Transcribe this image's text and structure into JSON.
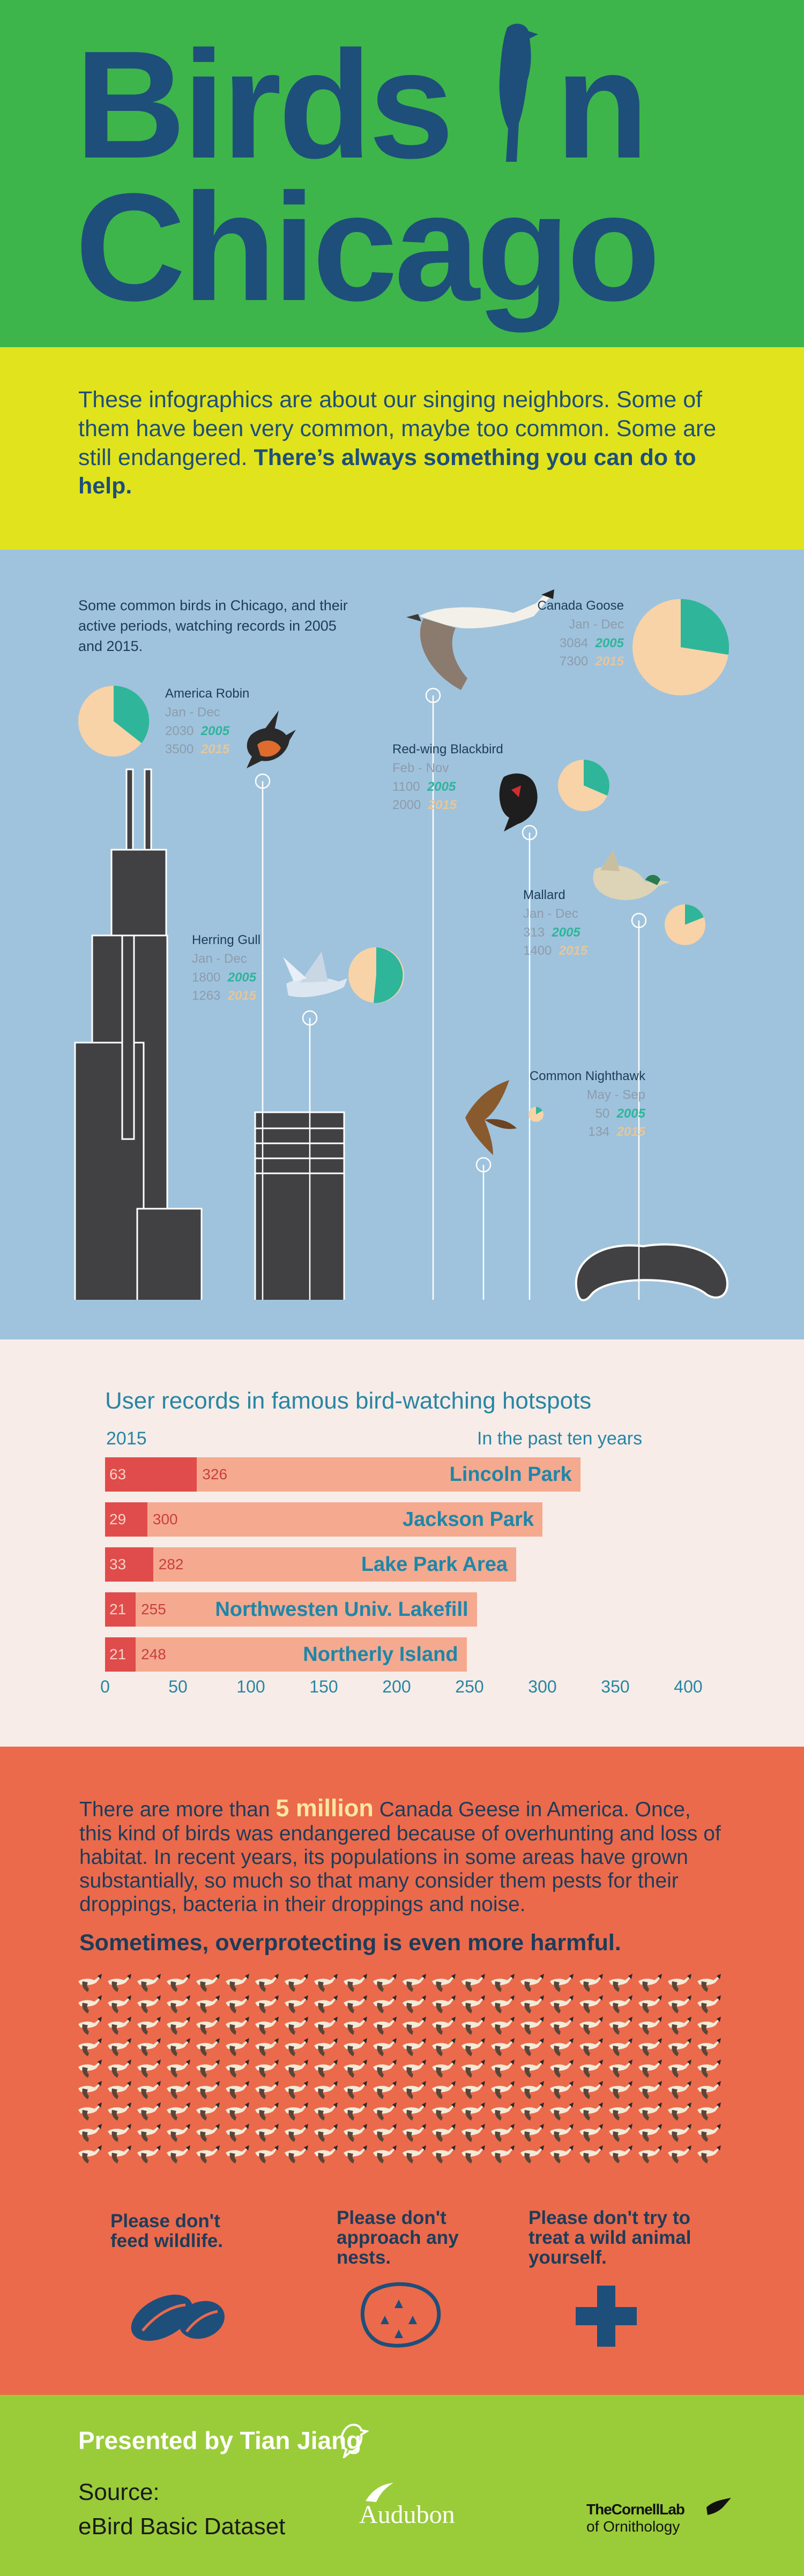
{
  "title": {
    "line1": "Birds",
    "line1b": "n",
    "line2": "Chicago"
  },
  "intro": {
    "text": "These infographics are about our singing neighbors. Some of them have been very common, maybe too common. Some are still endangered.",
    "emphasis": "There’s always something you can do to help."
  },
  "birds_section": {
    "description": "Some common birds in Chicago, and their active periods, watching records in 2005 and 2015.",
    "year_a": "2005",
    "year_b": "2015",
    "birds": [
      {
        "name": "America Robin",
        "period": "Jan - Dec",
        "v2005": "2030",
        "v2015": "3500"
      },
      {
        "name": "Canada Goose",
        "period": "Jan - Dec",
        "v2005": "3084",
        "v2015": "7300"
      },
      {
        "name": "Red-wing Blackbird",
        "period": "Feb - Nov",
        "v2005": "1100",
        "v2015": "2000"
      },
      {
        "name": "Herring Gull",
        "period": "Jan - Dec",
        "v2005": "1800",
        "v2015": "1263"
      },
      {
        "name": "Mallard",
        "period": "Jan - Dec",
        "v2005": "313",
        "v2015": "1400"
      },
      {
        "name": "Common Nighthawk",
        "period": "May - Sep",
        "v2005": "50",
        "v2015": "134"
      }
    ],
    "colors": {
      "y2005": "#2fb59a",
      "y2015": "#f9d3a8"
    }
  },
  "chart_data": {
    "type": "bar",
    "title": "User records in famous bird-watching hotspots",
    "legend_left": "2015",
    "legend_right": "In the past ten years",
    "categories": [
      "Lincoln Park",
      "Jackson Park",
      "Lake Park Area",
      "Northwesten Univ. Lakefill",
      "Northerly Island"
    ],
    "series": [
      {
        "name": "2015",
        "values": [
          63,
          29,
          33,
          21,
          21
        ]
      },
      {
        "name": "In the past ten years",
        "values": [
          326,
          300,
          282,
          255,
          248
        ]
      }
    ],
    "xlim": [
      0,
      400
    ],
    "xticks": [
      "0",
      "50",
      "100",
      "150",
      "200",
      "250",
      "300",
      "350",
      "400"
    ],
    "colors": {
      "recent": "#e04b4b",
      "decade": "#f5a98f",
      "labels": "#2786a3"
    }
  },
  "geese": {
    "text_before": "There are more than",
    "highlight": "5 million",
    "text_after": "Canada Geese in America. Once, this kind of birds was endangered because of overhunting and loss of habitat. In recent years, its populations in some areas have grown substantially, so much so that many consider them pests for their droppings, bacteria in their droppings and noise.",
    "heading": "Sometimes, overprotecting is even more harmful.",
    "tips": [
      "Please don't feed wildlife.",
      "Please don't approach any nests.",
      "Please don't try to treat a wild animal yourself."
    ],
    "icons": [
      "seeds-icon",
      "nest-icon",
      "first-aid-cross-icon"
    ]
  },
  "footer": {
    "presented": "Presented by Tian Jiang",
    "source_label": "Source:",
    "source_name": "eBird Basic Dataset",
    "logo_audubon": "Audubon",
    "logo_cornell_1": "TheCornellLab",
    "logo_cornell_2": "of Ornithology"
  }
}
